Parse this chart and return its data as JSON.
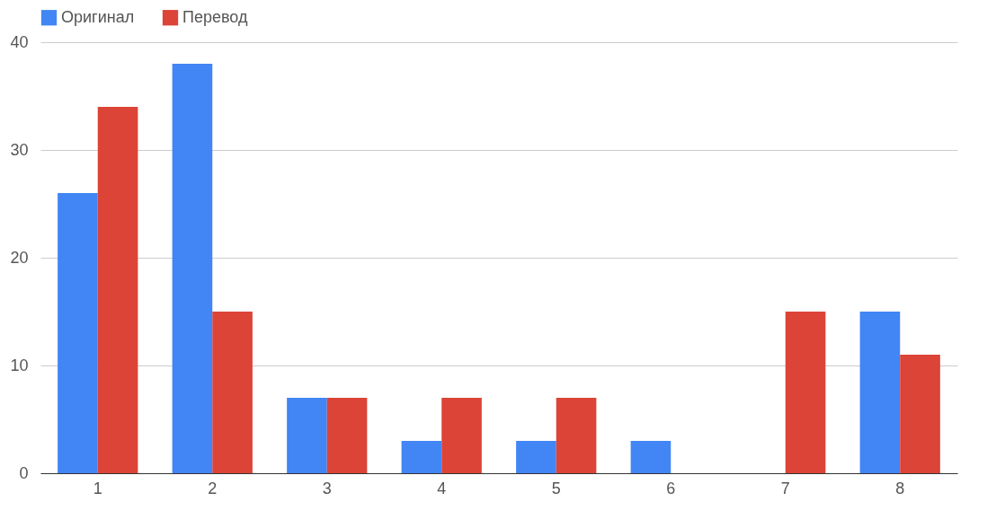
{
  "chart_data": {
    "type": "bar",
    "categories": [
      "1",
      "2",
      "3",
      "4",
      "5",
      "6",
      "7",
      "8"
    ],
    "series": [
      {
        "name": "Оригинал",
        "color": "#4285f4",
        "values": [
          26,
          38,
          7,
          3,
          3,
          3,
          0,
          15
        ]
      },
      {
        "name": "Перевод",
        "color": "#db4437",
        "values": [
          34,
          15,
          7,
          7,
          7,
          0,
          15,
          11
        ]
      }
    ],
    "ylim": [
      0,
      40
    ],
    "yticks": [
      0,
      10,
      20,
      30,
      40
    ],
    "grid": "y",
    "legend": "top"
  }
}
